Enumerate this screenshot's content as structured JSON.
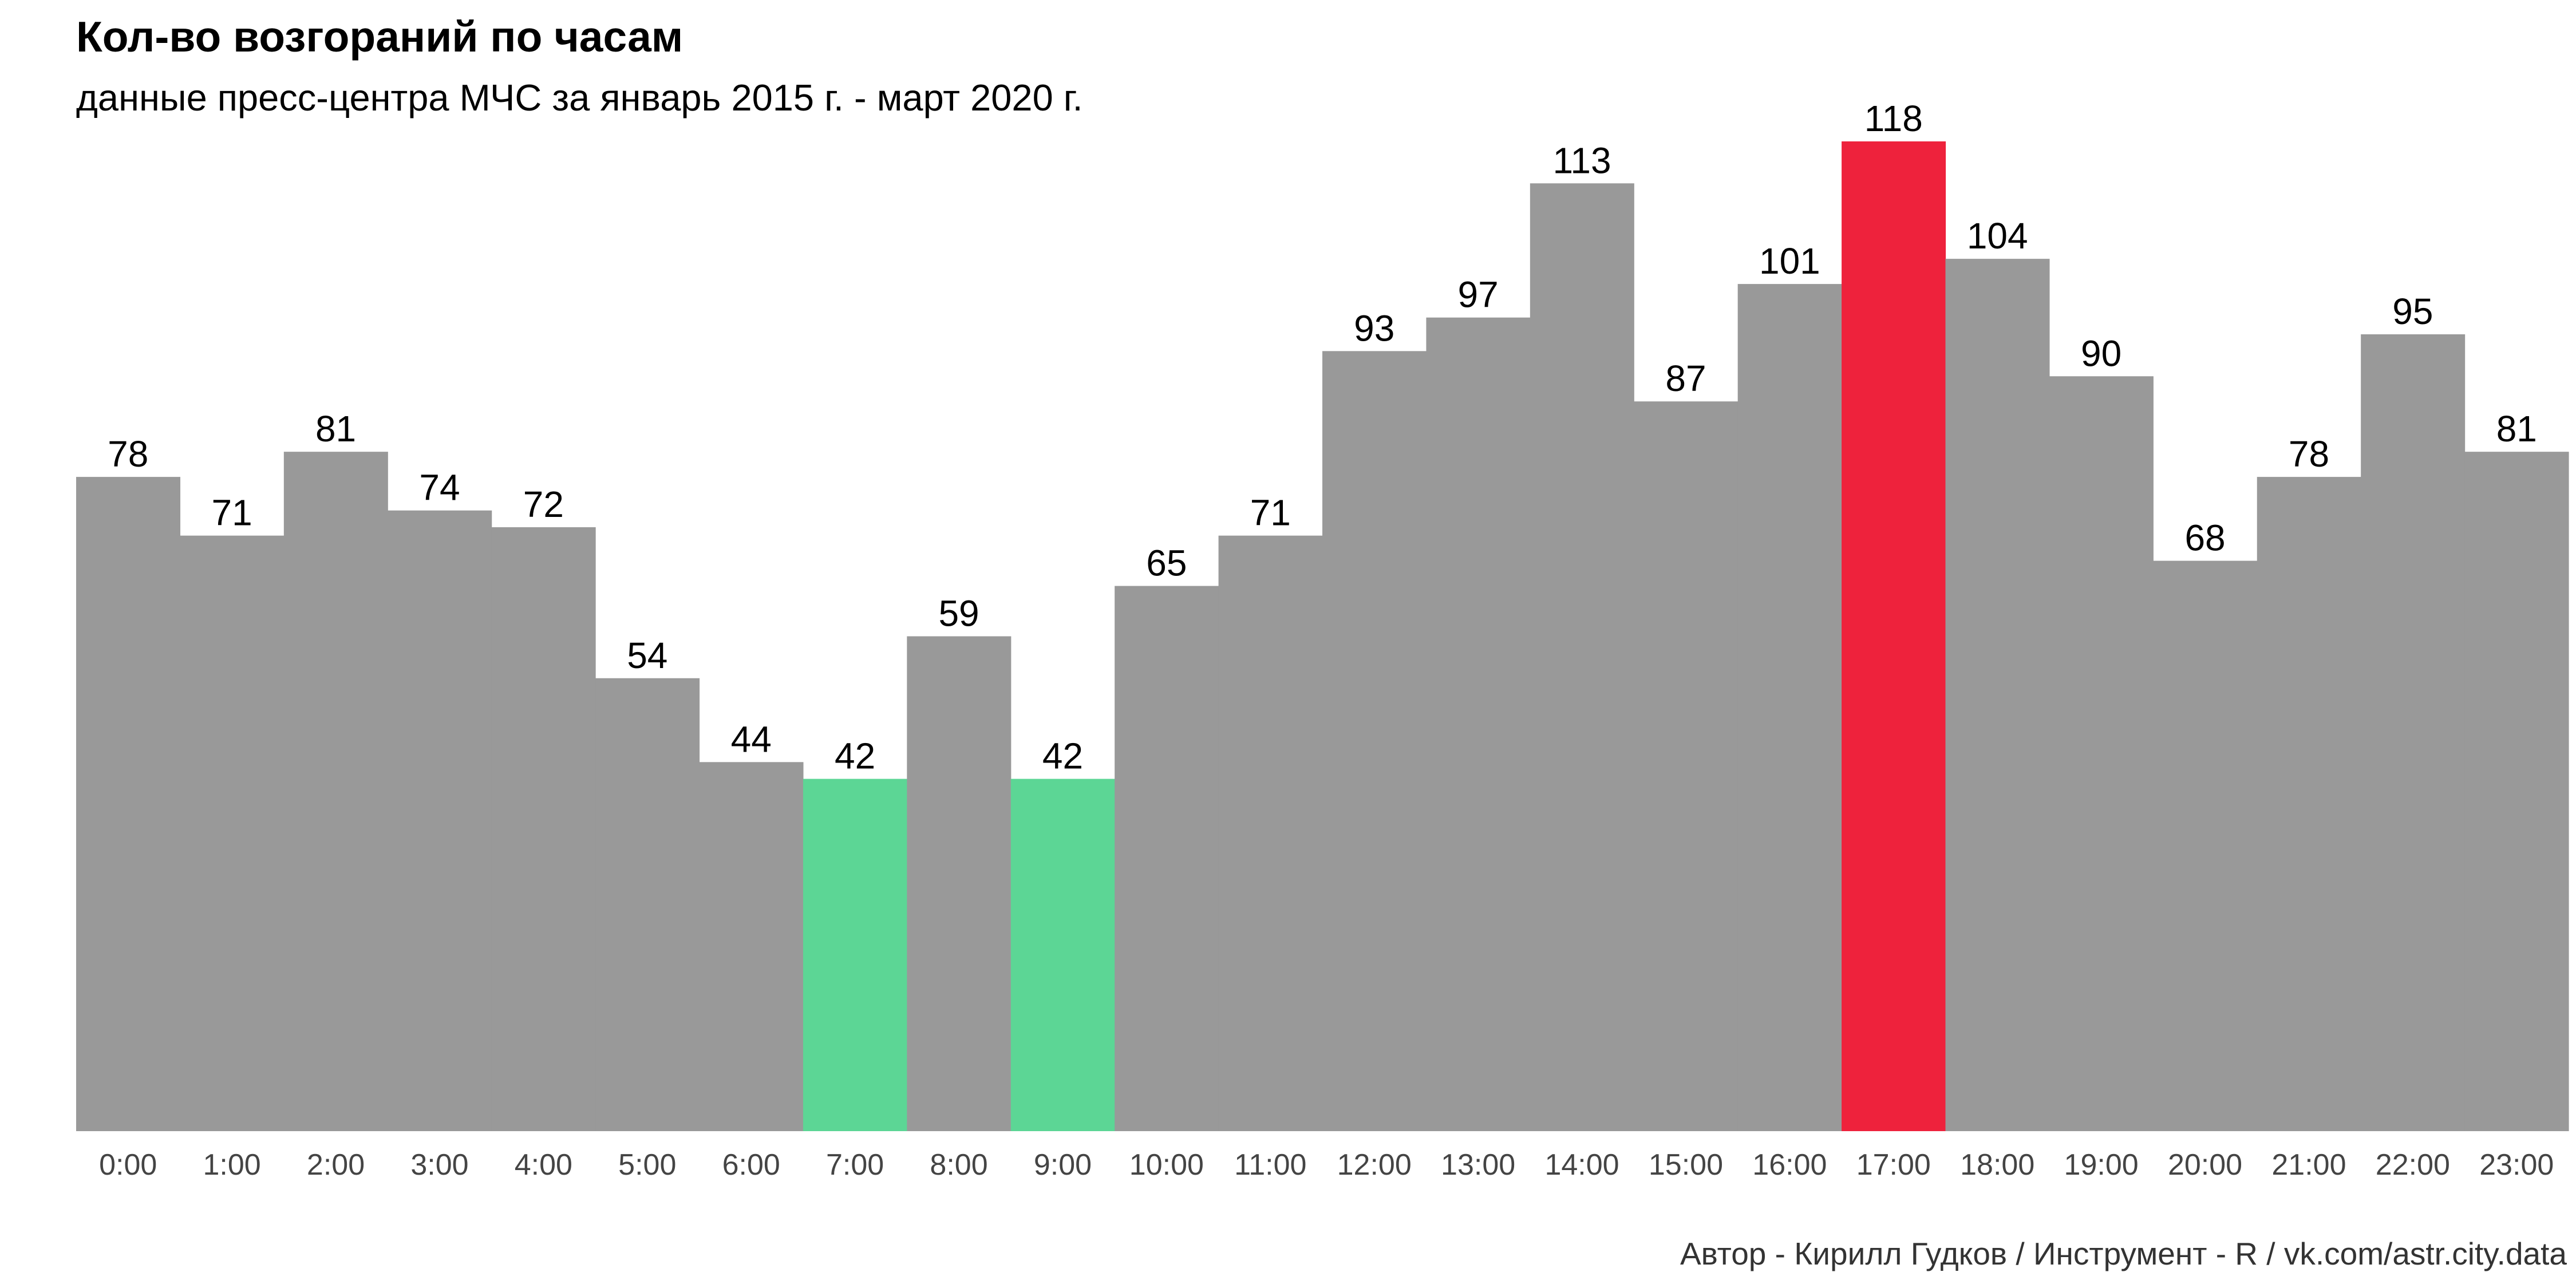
{
  "chart_data": {
    "type": "bar",
    "title": "Кол-во возгораний по часам",
    "subtitle": "данные пресс-центра МЧС за январь 2015 г. - март 2020 г.",
    "caption": "Автор - Кирилл Гудков / Инструмент - R / vk.com/astr.city.data",
    "categories": [
      "0:00",
      "1:00",
      "2:00",
      "3:00",
      "4:00",
      "5:00",
      "6:00",
      "7:00",
      "8:00",
      "9:00",
      "10:00",
      "11:00",
      "12:00",
      "13:00",
      "14:00",
      "15:00",
      "16:00",
      "17:00",
      "18:00",
      "19:00",
      "20:00",
      "21:00",
      "22:00",
      "23:00"
    ],
    "values": [
      78,
      71,
      81,
      74,
      72,
      54,
      44,
      42,
      59,
      42,
      65,
      71,
      93,
      97,
      113,
      87,
      101,
      118,
      104,
      90,
      68,
      78,
      95,
      81
    ],
    "ylim": [
      0,
      118
    ],
    "grid": false,
    "legend": "none",
    "colors": {
      "default": "#999999",
      "max": "#EE223C",
      "min": "#5CD695",
      "label": "#000000",
      "tick": "#444444"
    },
    "highlight": {
      "max": [
        "17:00"
      ],
      "min": [
        "7:00",
        "9:00"
      ]
    }
  }
}
